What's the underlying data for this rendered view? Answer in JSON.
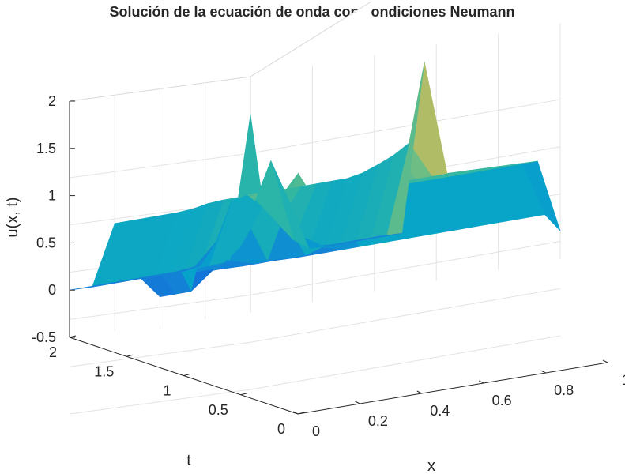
{
  "chart_data": {
    "type": "surface",
    "title": "Solución de la ecuación de onda con condiciones Neumann",
    "xlabel": "x",
    "ylabel": "t",
    "zlabel": "u(x, t)",
    "xlim": [
      0,
      1
    ],
    "ylim": [
      0,
      2
    ],
    "zlim": [
      -0.5,
      2
    ],
    "xticks": [
      "0",
      "0.2",
      "0.4",
      "0.6",
      "0.8",
      "1"
    ],
    "xtick_values": [
      0,
      0.2,
      0.4,
      0.6,
      0.8,
      1
    ],
    "yticks": [
      "0",
      "0.5",
      "1",
      "1.5",
      "2"
    ],
    "ytick_values": [
      0,
      0.5,
      1,
      1.5,
      2
    ],
    "zticks": [
      "-0.5",
      "0",
      "0.5",
      "1",
      "1.5",
      "2"
    ],
    "ztick_values": [
      -0.5,
      0,
      0.5,
      1,
      1.5,
      2
    ],
    "grid": true,
    "colormap": "parula",
    "colormap_colors": [
      "#352a87",
      "#0f5cdd",
      "#1481d6",
      "#06a4ca",
      "#2eb7a4",
      "#87bf77",
      "#d1bb59",
      "#fec832",
      "#f9fb0e"
    ],
    "surface": {
      "x_samples": [
        0,
        0.05,
        0.1,
        0.15,
        0.2,
        0.25,
        0.3,
        0.35,
        0.4,
        0.45,
        0.5,
        0.55,
        0.6,
        0.65,
        0.7,
        0.75,
        0.8,
        0.85,
        0.9,
        0.95,
        1
      ],
      "t_samples": [
        0,
        0.25,
        0.5,
        0.75,
        1,
        1.25,
        1.5,
        1.75,
        2
      ],
      "u_values": [
        [
          0,
          0,
          0,
          0,
          0,
          0,
          0,
          0,
          0,
          0,
          0.01,
          0.14,
          0.61,
          1,
          0.61,
          0.14,
          0.01,
          0,
          0,
          0,
          0
        ],
        [
          0,
          0,
          0,
          0,
          0,
          0,
          0,
          0.03,
          0.25,
          0.65,
          0.69,
          0.53,
          0.33,
          0.13,
          0.01,
          0,
          0,
          0,
          0,
          0,
          0
        ],
        [
          0.64,
          0.64,
          0.64,
          0.64,
          0.64,
          0.65,
          0.68,
          0.69,
          0.69,
          0.69,
          0.69,
          0.69,
          0.69,
          0.69,
          0.69,
          0.69,
          0.72,
          0.78,
          0.85,
          0.95,
          1.78
        ],
        [
          0.06,
          0.14,
          0.3,
          0.55,
          0.57,
          0.57,
          0.57,
          0.57,
          0.57,
          0.57,
          0.57,
          0.57,
          0.57,
          0.57,
          0.57,
          0.57,
          0.57,
          0.57,
          0.57,
          0.57,
          0.57
        ],
        [
          -0.2,
          -0.2,
          -0.2,
          0.43,
          0.57,
          0.57,
          0.57,
          0.57,
          0.57,
          0.57,
          0.57,
          0.57,
          0.57,
          0.57,
          0.57,
          0.57,
          0.57,
          0.57,
          0.57,
          0.57,
          0.57
        ],
        [
          0,
          0,
          0,
          0.06,
          0.5,
          0.62,
          0.58,
          0.57,
          0.57,
          0.57,
          0.57,
          0.57,
          0.57,
          0.57,
          0.57,
          0.57,
          0.57,
          0.57,
          0.57,
          0.57,
          0.57
        ],
        [
          0,
          0,
          0,
          0,
          0,
          0.42,
          0.87,
          0.58,
          0.57,
          0.57,
          0.57,
          0.57,
          0.57,
          0.57,
          0.57,
          0.57,
          0.57,
          0.57,
          0.57,
          0.57,
          0.57
        ],
        [
          0.01,
          0,
          0,
          0,
          0,
          0,
          0.05,
          0.45,
          0.68,
          0.57,
          0.57,
          0.57,
          0.57,
          0.57,
          0.57,
          0.57,
          0.57,
          0.57,
          0.57,
          0.57,
          0.57
        ],
        [
          1.6,
          0.4,
          0.04,
          0,
          0,
          0,
          0,
          0,
          0,
          0,
          0,
          0,
          0,
          0,
          0,
          0,
          0,
          0,
          0,
          0,
          -0.2
        ]
      ]
    }
  }
}
